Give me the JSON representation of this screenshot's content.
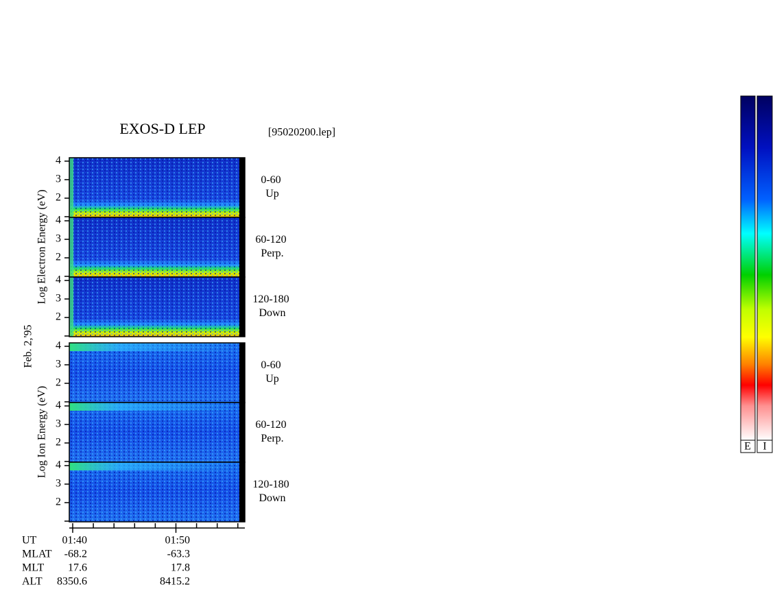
{
  "title": "EXOS-D LEP",
  "file": "[95020200.lep]",
  "date": "Feb. 2,'95",
  "electron_axis_label": "Log   Electron   Energy (eV)",
  "ion_axis_label": "Log   Ion   Energy (eV)",
  "panels": [
    {
      "species": "electron",
      "angle": "0-60",
      "direction": "Up",
      "yticks": [
        4,
        3,
        2
      ]
    },
    {
      "species": "electron",
      "angle": "60-120",
      "direction": "Perp.",
      "yticks": [
        4,
        3,
        2
      ]
    },
    {
      "species": "electron",
      "angle": "120-180",
      "direction": "Down",
      "yticks": [
        4,
        3,
        2
      ]
    },
    {
      "species": "ion",
      "angle": "0-60",
      "direction": "Up",
      "yticks": [
        4,
        3,
        2
      ]
    },
    {
      "species": "ion",
      "angle": "60-120",
      "direction": "Perp.",
      "yticks": [
        4,
        3,
        2
      ]
    },
    {
      "species": "ion",
      "angle": "120-180",
      "direction": "Down",
      "yticks": [
        4,
        3,
        2
      ]
    }
  ],
  "time_axis": {
    "row_labels": [
      "UT",
      "MLAT",
      "MLT",
      "ALT"
    ],
    "columns": [
      [
        "01:40",
        "-68.2",
        "17.6",
        "8350.6"
      ],
      [
        "01:50",
        "-63.3",
        "17.8",
        "8415.2"
      ]
    ]
  },
  "colorbar_labels": [
    "E",
    "I"
  ]
}
